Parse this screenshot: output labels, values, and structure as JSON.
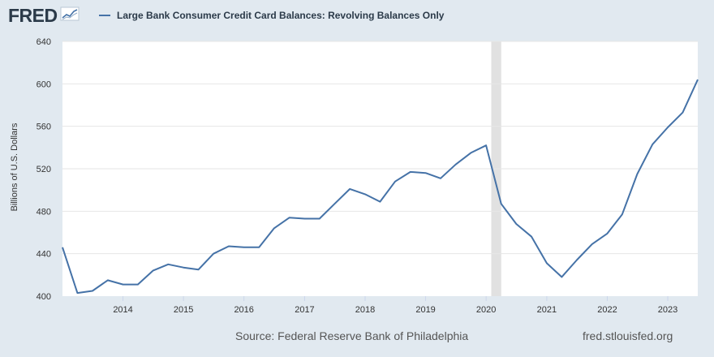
{
  "header": {
    "logo_text": "FRED",
    "series_title": "Large Bank Consumer Credit Card Balances: Revolving Balances Only"
  },
  "footer": {
    "source": "Source: Federal Reserve Bank of Philadelphia",
    "credit": "fred.stlouisfed.org"
  },
  "colors": {
    "line": "#4572a7",
    "recession": "#e1e1e1",
    "background": "#e1e9f0",
    "plot_bg": "#ffffff"
  },
  "chart_data": {
    "type": "line",
    "title": "Large Bank Consumer Credit Card Balances: Revolving Balances Only",
    "ylabel": "Billions of U.S. Dollars",
    "xlabel": "",
    "ylim": [
      400,
      640
    ],
    "xlim": [
      "2013-01-01",
      "2023-07-01"
    ],
    "yticks": [
      400,
      440,
      480,
      520,
      560,
      600,
      640
    ],
    "xticks": [
      "2014",
      "2015",
      "2016",
      "2017",
      "2018",
      "2019",
      "2020",
      "2021",
      "2022",
      "2023"
    ],
    "grid": true,
    "recession_periods": [
      [
        "2020-02-01",
        "2020-04-01"
      ]
    ],
    "series": [
      {
        "name": "Large Bank Consumer Credit Card Balances: Revolving Balances Only",
        "x": [
          "2013-01-01",
          "2013-04-01",
          "2013-07-01",
          "2013-10-01",
          "2014-01-01",
          "2014-04-01",
          "2014-07-01",
          "2014-10-01",
          "2015-01-01",
          "2015-04-01",
          "2015-07-01",
          "2015-10-01",
          "2016-01-01",
          "2016-04-01",
          "2016-07-01",
          "2016-10-01",
          "2017-01-01",
          "2017-04-01",
          "2017-07-01",
          "2017-10-01",
          "2018-01-01",
          "2018-04-01",
          "2018-07-01",
          "2018-10-01",
          "2019-01-01",
          "2019-04-01",
          "2019-07-01",
          "2019-10-01",
          "2020-01-01",
          "2020-04-01",
          "2020-07-01",
          "2020-10-01",
          "2021-01-01",
          "2021-04-01",
          "2021-07-01",
          "2021-10-01",
          "2022-01-01",
          "2022-04-01",
          "2022-07-01",
          "2022-10-01",
          "2023-01-01",
          "2023-04-01",
          "2023-07-01"
        ],
        "values": [
          446,
          403,
          405,
          415,
          411,
          411,
          424,
          430,
          427,
          425,
          440,
          447,
          446,
          446,
          464,
          474,
          473,
          473,
          487,
          501,
          496,
          489,
          508,
          517,
          516,
          511,
          524,
          535,
          542,
          487,
          468,
          456,
          431,
          418,
          434,
          449,
          459,
          477,
          515,
          543,
          559,
          573,
          604
        ]
      }
    ]
  }
}
